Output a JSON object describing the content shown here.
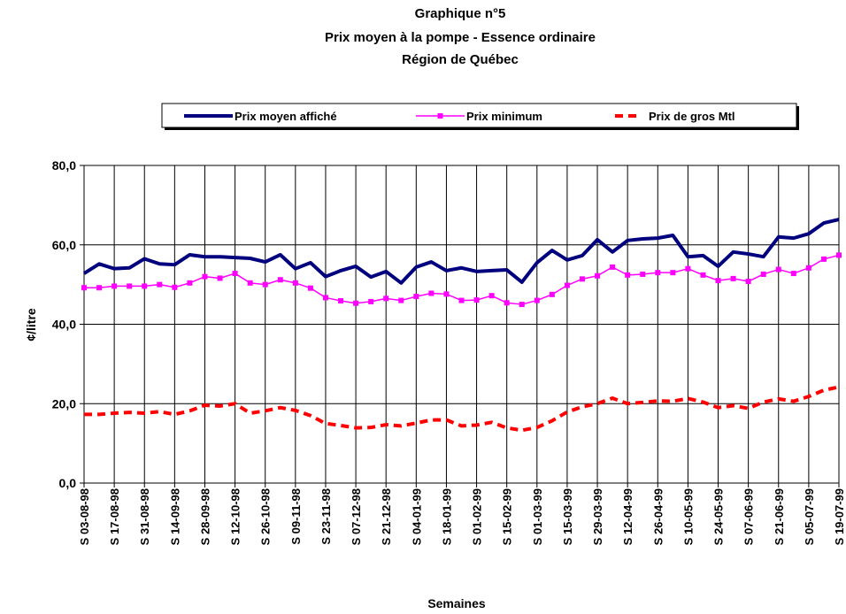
{
  "chart_data": {
    "type": "line",
    "title": "Graphique n°5",
    "subtitle": [
      "Prix moyen à la pompe - Essence ordinaire",
      "Région de Québec"
    ],
    "y_label": "¢/litre",
    "x_label": "Semaines",
    "categories": [
      "S 03-08-98",
      null,
      "S 17-08-98",
      null,
      "S 31-08-98",
      null,
      "S 14-09-98",
      null,
      "S 28-09-98",
      null,
      "S 12-10-98",
      null,
      "S 26-10-98",
      null,
      "S 09-11-98",
      null,
      "S 23-11-98",
      null,
      "S 07-12-98",
      null,
      "S 21-12-98",
      null,
      "S 04-01-99",
      null,
      "S 18-01-99",
      null,
      "S 01-02-99",
      null,
      "S 15-02-99",
      null,
      "S 01-03-99",
      null,
      "S 15-03-99",
      null,
      "S 29-03-99",
      null,
      "S 12-04-99",
      null,
      "S 26-04-99",
      null,
      "S 10-05-99",
      null,
      "S 24-05-99",
      null,
      "S 07-06-99",
      null,
      "S 21-06-99",
      null,
      "S 05-07-99",
      null,
      "S 19-07-99"
    ],
    "series": [
      {
        "name": "Prix moyen affiché",
        "color": "#00007f",
        "style": "solid",
        "values": [
          52.8,
          55.2,
          54.0,
          54.2,
          56.5,
          55.2,
          55.0,
          57.5,
          57.0,
          57.0,
          56.8,
          56.6,
          55.7,
          57.5,
          54.0,
          55.5,
          52.0,
          53.5,
          54.6,
          51.9,
          53.3,
          50.4,
          54.4,
          55.7,
          53.5,
          54.2,
          53.3,
          53.5,
          53.7,
          50.6,
          55.5,
          58.6,
          56.2,
          57.3,
          61.3,
          58.2,
          61.1,
          61.5,
          61.7,
          62.4,
          57.0,
          57.3,
          54.6,
          58.2,
          57.7,
          57.0,
          62.0,
          61.7,
          62.8,
          65.5,
          66.4
        ]
      },
      {
        "name": "Prix minimum",
        "color": "#ff00ff",
        "style": "marker",
        "values": [
          49.2,
          49.2,
          49.6,
          49.6,
          49.6,
          50.0,
          49.3,
          50.4,
          52.0,
          51.6,
          52.8,
          50.4,
          50.0,
          51.2,
          50.4,
          49.1,
          46.7,
          45.9,
          45.3,
          45.7,
          46.5,
          46.0,
          47.0,
          47.8,
          47.6,
          46.0,
          46.1,
          47.2,
          45.4,
          45.0,
          46.0,
          47.5,
          49.8,
          51.4,
          52.2,
          54.4,
          52.4,
          52.6,
          53.0,
          53.0,
          54.0,
          52.4,
          51.0,
          51.5,
          50.8,
          52.6,
          53.8,
          52.8,
          54.2,
          56.4,
          57.4
        ]
      },
      {
        "name": "Prix de gros Mtl",
        "color": "#ff0000",
        "style": "dashed",
        "values": [
          17.3,
          17.3,
          17.6,
          17.8,
          17.6,
          18.0,
          17.3,
          18.2,
          19.6,
          19.4,
          20.0,
          17.6,
          18.2,
          19.0,
          18.3,
          17.0,
          15.0,
          14.5,
          13.9,
          14.0,
          14.7,
          14.4,
          15.1,
          15.9,
          15.9,
          14.4,
          14.6,
          15.3,
          13.9,
          13.3,
          14.0,
          15.7,
          17.9,
          19.2,
          20.0,
          21.4,
          20.0,
          20.3,
          20.7,
          20.6,
          21.3,
          20.4,
          19.0,
          19.5,
          18.8,
          20.4,
          21.2,
          20.6,
          21.8,
          23.4,
          24.2
        ]
      }
    ],
    "ylim": [
      0,
      80
    ],
    "yticks": [
      {
        "value": 0,
        "label": "0,0"
      },
      {
        "value": 20,
        "label": "20,0"
      },
      {
        "value": 40,
        "label": "40,0"
      },
      {
        "value": 60,
        "label": "60,0"
      },
      {
        "value": 80,
        "label": "80,0"
      }
    ],
    "grid": true,
    "legend": "top"
  }
}
